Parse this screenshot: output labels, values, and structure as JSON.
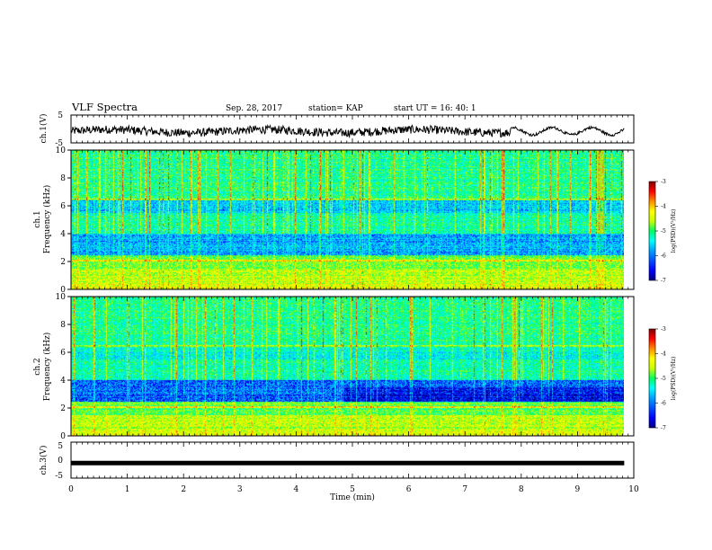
{
  "header": {
    "title": "VLF Spectra",
    "date": "Sep. 28, 2017",
    "station": "station= KAP",
    "start": "start  UT =   16: 40: 1"
  },
  "colors": {
    "waveform": "#000000",
    "colormap": [
      "#000080",
      "#0000ff",
      "#00a0ff",
      "#00ffff",
      "#00ff60",
      "#c8ff00",
      "#ffff00",
      "#ff8c00",
      "#ff0000",
      "#800000"
    ]
  },
  "chart_data": [
    {
      "type": "line",
      "panel": "ch1-waveform",
      "ylabel": "ch.1(V)",
      "yticks": [
        "5",
        "-5"
      ],
      "ylim": [
        -5,
        5
      ],
      "xlim": [
        0,
        10
      ],
      "x_data_max": 9.83,
      "description_values": "noisy oscillating waveform around about -0.8 V, amplitude roughly ±2.5 V"
    },
    {
      "type": "heatmap",
      "panel": "ch1-spectrogram",
      "ylabel": "ch.1\nFrequency (kHz)",
      "ylabel_line1": "ch.1",
      "ylabel_line2": "Frequency (kHz)",
      "yticks": [
        "0",
        "2",
        "4",
        "6",
        "8",
        "10"
      ],
      "ylim": [
        0,
        10
      ],
      "xlim": [
        0,
        10
      ],
      "x_data_max": 9.83,
      "colorbar": {
        "label": "log(PSD)(V²/Hz)",
        "ticks": [
          "-3",
          "-4",
          "-5",
          "-6",
          "-7"
        ],
        "range": [
          -7,
          -3
        ]
      }
    },
    {
      "type": "heatmap",
      "panel": "ch2-spectrogram",
      "ylabel_line1": "ch.2",
      "ylabel_line2": "Frequency (kHz)",
      "yticks": [
        "0",
        "2",
        "4",
        "6",
        "8",
        "10"
      ],
      "ylim": [
        0,
        10
      ],
      "xlim": [
        0,
        10
      ],
      "x_data_max": 9.83,
      "colorbar": {
        "label": "log(PSD)(V²/Hz)",
        "ticks": [
          "-3",
          "-4",
          "-5",
          "-6",
          "-7"
        ],
        "range": [
          -7,
          -3
        ]
      }
    },
    {
      "type": "line",
      "panel": "ch3-waveform",
      "ylabel": "ch.3(V)",
      "yticks": [
        "5",
        "0",
        "-5"
      ],
      "ylim": [
        -5,
        5
      ],
      "xlim": [
        0,
        10
      ],
      "x_data_max": 9.83,
      "x": [
        0,
        9.83
      ],
      "y": [
        -0.8,
        -0.8
      ]
    }
  ],
  "xaxis": {
    "label": "Time (min)",
    "ticks": [
      "0",
      "1",
      "2",
      "3",
      "4",
      "5",
      "6",
      "7",
      "8",
      "9",
      "10"
    ]
  }
}
